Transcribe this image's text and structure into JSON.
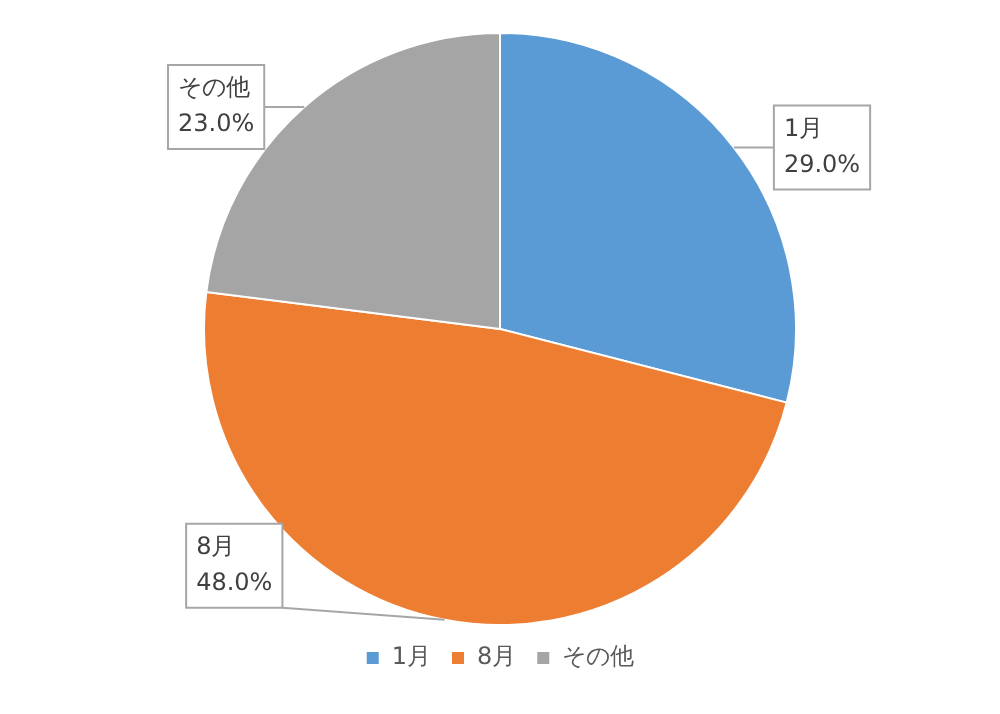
{
  "chart_data": {
    "type": "pie",
    "categories": [
      "1月",
      "8月",
      "その他"
    ],
    "values": [
      29.0,
      48.0,
      23.0
    ],
    "colors": [
      "#5b9bd5",
      "#ed7d31",
      "#a5a5a5"
    ],
    "value_labels": [
      "29.0%",
      "48.0%",
      "23.0%"
    ],
    "legend": "bottom"
  }
}
